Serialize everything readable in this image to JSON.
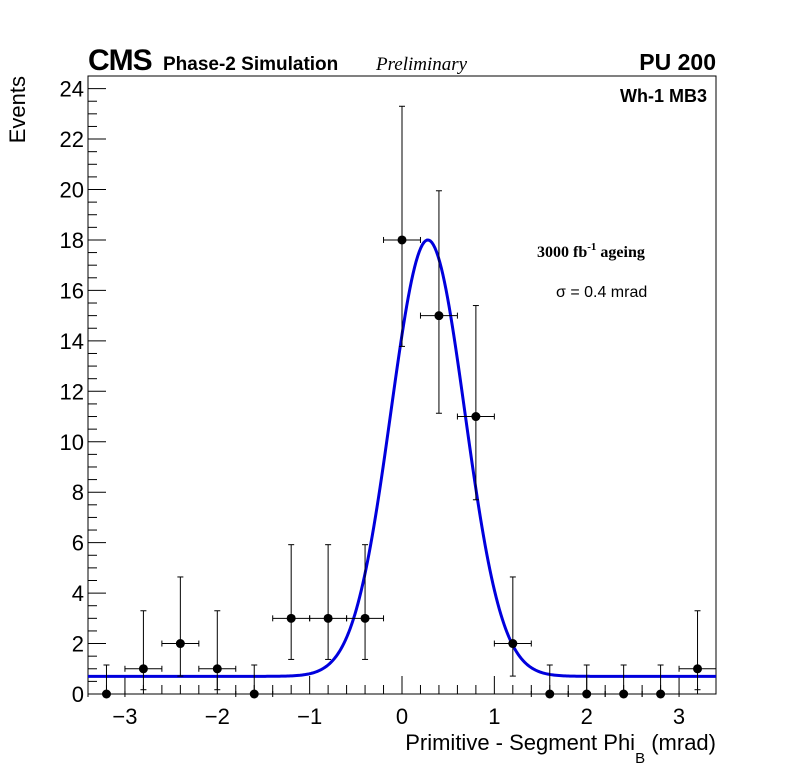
{
  "header": {
    "experiment": "CMS",
    "subtitle": "Phase-2 Simulation",
    "status": "Preliminary",
    "pileup": "PU 200"
  },
  "chart_data": {
    "type": "scatter",
    "title": "Wh-1 MB3",
    "xlabel": "Primitive - Segment Phi",
    "xlabel_sub": "B",
    "xlabel_unit": "(mrad)",
    "ylabel": "Events",
    "xlim": [
      -3.4,
      3.4
    ],
    "ylim": [
      0,
      24.5
    ],
    "x_ticks": [
      -3,
      -2,
      -1,
      0,
      1,
      2,
      3
    ],
    "x_tick_labels": [
      "−3",
      "−2",
      "−1",
      "0",
      "1",
      "2",
      "3"
    ],
    "y_ticks": [
      0,
      2,
      4,
      6,
      8,
      10,
      12,
      14,
      16,
      18,
      20,
      22,
      24
    ],
    "y_tick_labels": [
      "0",
      "2",
      "4",
      "6",
      "8",
      "10",
      "12",
      "14",
      "16",
      "18",
      "20",
      "22",
      "24"
    ],
    "bin_width": 0.4,
    "annotations": {
      "ageing_main": "3000 fb",
      "ageing_sup": "-1",
      "ageing_rest": " ageing",
      "sigma": "σ = 0.4 mrad"
    },
    "series": [
      {
        "name": "data",
        "type": "errorbar",
        "color": "#000000",
        "points": [
          {
            "x": -3.2,
            "y": 0,
            "err_low": 0,
            "err_high": 1.15
          },
          {
            "x": -2.8,
            "y": 1,
            "err_low": 0.83,
            "err_high": 2.3
          },
          {
            "x": -2.4,
            "y": 2,
            "err_low": 1.29,
            "err_high": 2.64
          },
          {
            "x": -2.0,
            "y": 1,
            "err_low": 0.83,
            "err_high": 2.3
          },
          {
            "x": -1.6,
            "y": 0,
            "err_low": 0,
            "err_high": 1.15
          },
          {
            "x": -1.2,
            "y": 3,
            "err_low": 1.63,
            "err_high": 2.92
          },
          {
            "x": -0.8,
            "y": 3,
            "err_low": 1.63,
            "err_high": 2.92
          },
          {
            "x": -0.4,
            "y": 3,
            "err_low": 1.63,
            "err_high": 2.92
          },
          {
            "x": 0.0,
            "y": 18,
            "err_low": 4.22,
            "err_high": 5.3
          },
          {
            "x": 0.4,
            "y": 15,
            "err_low": 3.87,
            "err_high": 4.95
          },
          {
            "x": 0.8,
            "y": 11,
            "err_low": 3.3,
            "err_high": 4.4
          },
          {
            "x": 1.2,
            "y": 2,
            "err_low": 1.29,
            "err_high": 2.64
          },
          {
            "x": 1.6,
            "y": 0,
            "err_low": 0,
            "err_high": 1.15
          },
          {
            "x": 2.0,
            "y": 0,
            "err_low": 0,
            "err_high": 1.15
          },
          {
            "x": 2.4,
            "y": 0,
            "err_low": 0,
            "err_high": 1.15
          },
          {
            "x": 2.8,
            "y": 0,
            "err_low": 0,
            "err_high": 1.15
          },
          {
            "x": 3.2,
            "y": 1,
            "err_low": 0.83,
            "err_high": 2.3
          }
        ]
      },
      {
        "name": "gaussian fit",
        "type": "line",
        "color": "#0000dd",
        "model": "gaussian_plus_constant",
        "amplitude": 17.3,
        "mean": 0.28,
        "sigma": 0.4,
        "constant": 0.7
      }
    ]
  }
}
